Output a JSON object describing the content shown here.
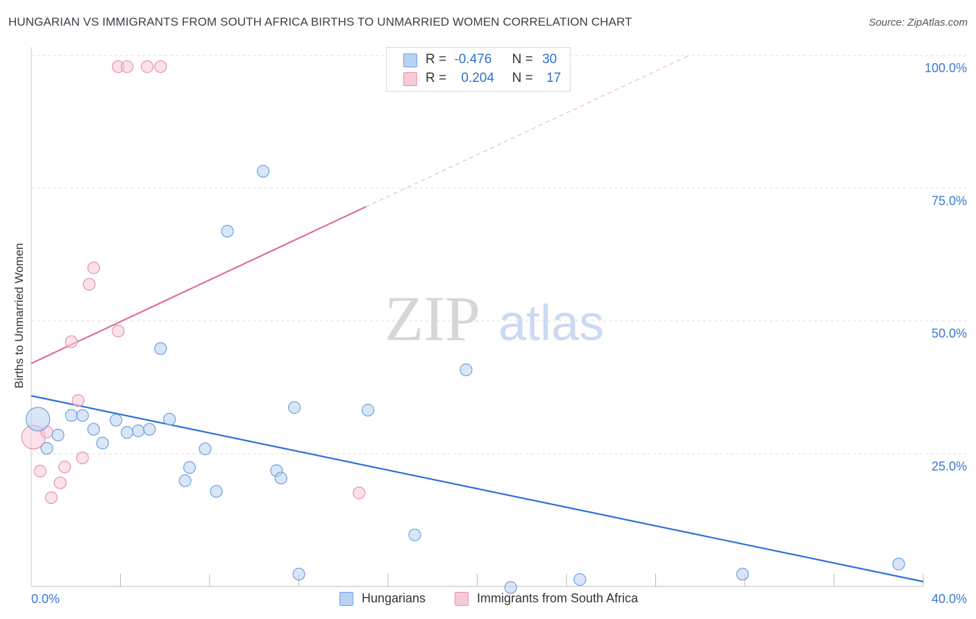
{
  "title": "HUNGARIAN VS IMMIGRANTS FROM SOUTH AFRICA BIRTHS TO UNMARRIED WOMEN CORRELATION CHART",
  "source": "Source: ZipAtlas.com",
  "watermark": {
    "zip": "ZIP",
    "atlas": "atlas"
  },
  "legend": {
    "rows": [
      {
        "r_label": "R =",
        "r_value": "-0.476",
        "n_label": "N =",
        "n_value": "30",
        "color": "#a8c6f0"
      },
      {
        "r_label": "R =",
        "r_value": "0.204",
        "n_label": "N =",
        "n_value": "17",
        "color": "#f4b5c8"
      }
    ]
  },
  "bottom_legend": [
    {
      "label": "Hungarians",
      "color": "#a8c6f0"
    },
    {
      "label": "Immigrants from South Africa",
      "color": "#f4b5c8"
    }
  ],
  "colors": {
    "blue_fill": "#b8d2f3",
    "blue_stroke": "#6f9fdd",
    "blue_line": "#2c6fd6",
    "pink_fill": "#f8c9d8",
    "pink_stroke": "#e891ac",
    "pink_line": "#e06d93",
    "grid": "#dddddd",
    "axis_label": "#3b78cf"
  },
  "chart_data": {
    "type": "scatter",
    "xlabel": "",
    "ylabel": "Births to Unmarried Women",
    "xlim": [
      0,
      40
    ],
    "ylim": [
      0,
      100
    ],
    "x_tick_labels": [
      "0.0%",
      "40.0%"
    ],
    "y_tick_values": [
      25,
      50,
      75,
      100
    ],
    "y_tick_labels": [
      "25.0%",
      "50.0%",
      "75.0%",
      "100.0%"
    ],
    "series": [
      {
        "name": "Hungarians",
        "trend": {
          "x0": 0,
          "y0": 35.9,
          "x1": 40,
          "y1": 0.9,
          "solid_until": 40
        },
        "points": [
          {
            "x": 0.3,
            "y": 31.5,
            "big": true
          },
          {
            "x": 0.7,
            "y": 26.0
          },
          {
            "x": 1.2,
            "y": 28.5
          },
          {
            "x": 1.8,
            "y": 32.2
          },
          {
            "x": 2.3,
            "y": 32.2
          },
          {
            "x": 2.8,
            "y": 29.6
          },
          {
            "x": 3.2,
            "y": 27.0
          },
          {
            "x": 3.8,
            "y": 31.3
          },
          {
            "x": 4.3,
            "y": 29.0
          },
          {
            "x": 4.8,
            "y": 29.3
          },
          {
            "x": 5.3,
            "y": 29.6
          },
          {
            "x": 5.8,
            "y": 44.8
          },
          {
            "x": 6.2,
            "y": 31.5
          },
          {
            "x": 6.9,
            "y": 19.9
          },
          {
            "x": 7.1,
            "y": 22.4
          },
          {
            "x": 7.8,
            "y": 25.9
          },
          {
            "x": 8.3,
            "y": 17.9
          },
          {
            "x": 8.8,
            "y": 66.9
          },
          {
            "x": 10.4,
            "y": 78.2
          },
          {
            "x": 11.0,
            "y": 21.8
          },
          {
            "x": 11.2,
            "y": 20.4
          },
          {
            "x": 11.8,
            "y": 33.7
          },
          {
            "x": 12.0,
            "y": 2.3
          },
          {
            "x": 15.1,
            "y": 33.2
          },
          {
            "x": 17.2,
            "y": 9.7
          },
          {
            "x": 19.5,
            "y": 40.8
          },
          {
            "x": 21.5,
            "y": -0.2
          },
          {
            "x": 24.6,
            "y": 1.3
          },
          {
            "x": 31.9,
            "y": 2.3
          },
          {
            "x": 38.9,
            "y": 4.2
          }
        ]
      },
      {
        "name": "Immigrants from South Africa",
        "trend": {
          "x0": 0,
          "y0": 42.0,
          "x1": 29.5,
          "y1": 100,
          "solid_until": 15.0
        },
        "points": [
          {
            "x": 0.1,
            "y": 28.1,
            "big": true
          },
          {
            "x": 0.4,
            "y": 21.7
          },
          {
            "x": 0.7,
            "y": 29.1
          },
          {
            "x": 0.9,
            "y": 16.7
          },
          {
            "x": 1.3,
            "y": 19.5
          },
          {
            "x": 1.5,
            "y": 22.5
          },
          {
            "x": 1.8,
            "y": 46.1
          },
          {
            "x": 2.1,
            "y": 35.0
          },
          {
            "x": 2.3,
            "y": 24.2
          },
          {
            "x": 2.6,
            "y": 56.9
          },
          {
            "x": 2.8,
            "y": 60.0
          },
          {
            "x": 3.9,
            "y": 48.1
          },
          {
            "x": 3.9,
            "y": 97.9
          },
          {
            "x": 4.3,
            "y": 97.9
          },
          {
            "x": 5.2,
            "y": 97.9
          },
          {
            "x": 5.8,
            "y": 97.9
          },
          {
            "x": 14.7,
            "y": 17.6
          }
        ]
      }
    ]
  }
}
